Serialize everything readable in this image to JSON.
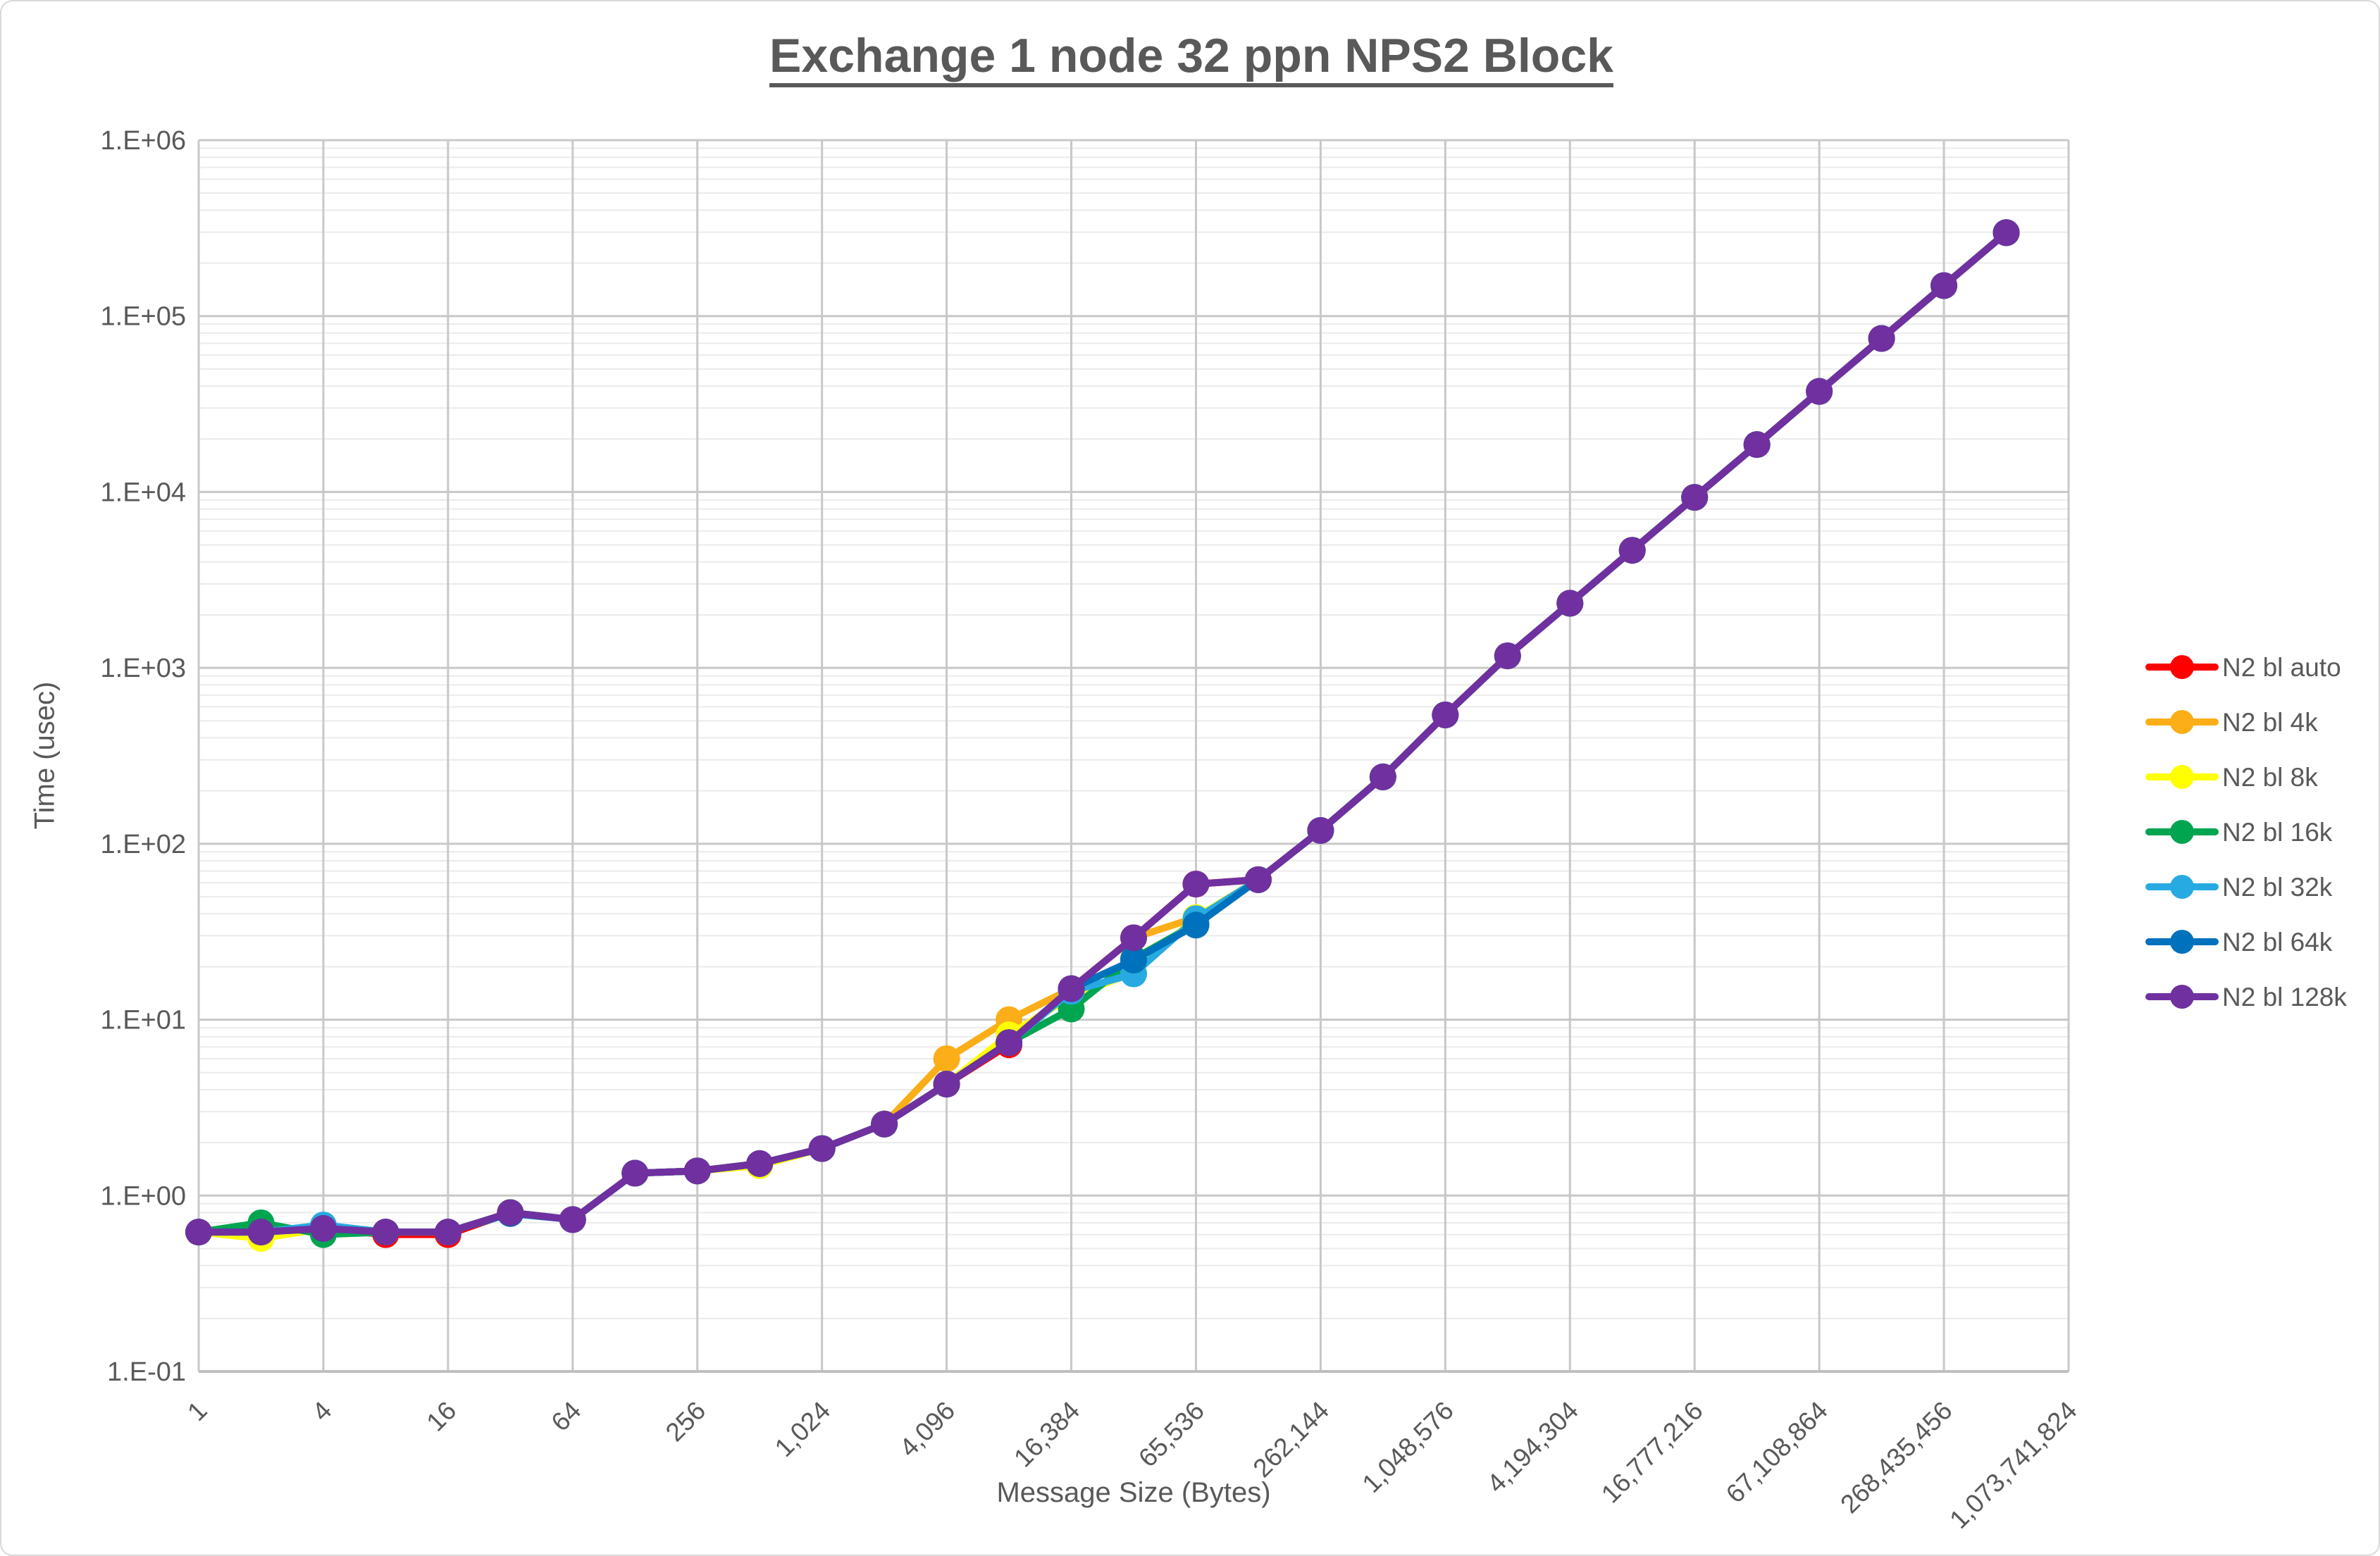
{
  "title": "Exchange 1 node 32 ppn NPS2 Block",
  "axes": {
    "x_label": "Message Size (Bytes)",
    "y_label": "Time (usec)",
    "x_tick_labels": [
      "1",
      "4",
      "16",
      "64",
      "256",
      "1,024",
      "4,096",
      "16,384",
      "65,536",
      "262,144",
      "1,048,576",
      "4,194,304",
      "16,777,216",
      "67,108,864",
      "268,435,456",
      "1,073,741,824"
    ],
    "y_tick_labels": [
      "1.E+06",
      "1.E+05",
      "1.E+04",
      "1.E+03",
      "1.E+02",
      "1.E+01",
      "1.E+00",
      "1.E-01"
    ]
  },
  "colors": {
    "text": "#595959",
    "grid_major": "#c8c8c8",
    "grid_minor": "#ebebeb",
    "plot_border": "#bfbfbf"
  },
  "chart_data": {
    "type": "line",
    "x_scale": "log",
    "y_scale": "log",
    "title": "Exchange 1 node 32 ppn NPS2 Block",
    "xlabel": "Message Size (Bytes)",
    "ylabel": "Time (usec)",
    "ylim": [
      0.1,
      1000000
    ],
    "xlim": [
      1,
      1073741824
    ],
    "grid": true,
    "legend_position": "right",
    "x": [
      1,
      2,
      4,
      8,
      16,
      32,
      64,
      128,
      256,
      512,
      1024,
      2048,
      4096,
      8192,
      16384,
      32768,
      65536,
      131072,
      262144,
      524288,
      1048576,
      2097152,
      4194304,
      8388608,
      16777216,
      33554432,
      67108864,
      134217728,
      268435456,
      536870912
    ],
    "series": [
      {
        "name": "N2 bl auto",
        "color": "#ff0000",
        "values": [
          0.62,
          0.62,
          0.65,
          0.6,
          0.6,
          0.8,
          0.73,
          1.34,
          1.38,
          1.52,
          1.85,
          2.55,
          4.3,
          7.2,
          15.0,
          29.2,
          59.0,
          62.5,
          119,
          240,
          540,
          1170,
          2330,
          4660,
          9320,
          18600,
          37300,
          74600,
          149000,
          298000
        ]
      },
      {
        "name": "N2 bl 4k",
        "color": "#fbae17",
        "values": [
          0.62,
          0.62,
          0.65,
          0.62,
          0.62,
          0.8,
          0.73,
          1.34,
          1.38,
          1.52,
          1.85,
          2.55,
          6.0,
          10.0,
          15.0,
          29.2,
          38.0,
          62.5,
          119,
          240,
          540,
          1170,
          2330,
          4660,
          9320,
          18600,
          37300,
          74600,
          149000,
          298000
        ]
      },
      {
        "name": "N2 bl 8k",
        "color": "#ffff00",
        "values": [
          0.62,
          0.57,
          0.65,
          0.62,
          0.62,
          0.8,
          0.73,
          1.34,
          1.38,
          1.48,
          1.85,
          2.55,
          4.3,
          8.2,
          13.6,
          18.5,
          38.0,
          62.5,
          119,
          240,
          540,
          1170,
          2330,
          4660,
          9320,
          18600,
          37300,
          74600,
          149000,
          298000
        ]
      },
      {
        "name": "N2 bl 16k",
        "color": "#00a550",
        "values": [
          0.62,
          0.7,
          0.6,
          0.62,
          0.62,
          0.8,
          0.73,
          1.34,
          1.38,
          1.52,
          1.85,
          2.55,
          4.3,
          7.4,
          11.5,
          22.2,
          35.0,
          62.5,
          119,
          240,
          540,
          1170,
          2330,
          4660,
          9320,
          18600,
          37300,
          74600,
          149000,
          298000
        ]
      },
      {
        "name": "N2 bl 32k",
        "color": "#27aae1",
        "values": [
          0.62,
          0.62,
          0.68,
          0.62,
          0.62,
          0.8,
          0.73,
          1.34,
          1.38,
          1.52,
          1.85,
          2.55,
          4.3,
          7.4,
          14.5,
          18.2,
          37.5,
          62.5,
          119,
          240,
          540,
          1170,
          2330,
          4660,
          9320,
          18600,
          37300,
          74600,
          149000,
          298000
        ]
      },
      {
        "name": "N2 bl 64k",
        "color": "#0071bc",
        "values": [
          0.62,
          0.62,
          0.65,
          0.62,
          0.62,
          0.79,
          0.73,
          1.34,
          1.38,
          1.52,
          1.85,
          2.55,
          4.3,
          7.4,
          15.0,
          21.8,
          34.5,
          62.5,
          119,
          240,
          540,
          1170,
          2330,
          4660,
          9320,
          18600,
          37300,
          74600,
          149000,
          298000
        ]
      },
      {
        "name": "N2 bl 128k",
        "color": "#7030a0",
        "values": [
          0.62,
          0.62,
          0.65,
          0.62,
          0.62,
          0.8,
          0.73,
          1.34,
          1.38,
          1.52,
          1.85,
          2.55,
          4.3,
          7.4,
          15.0,
          29.2,
          59.0,
          62.5,
          119,
          240,
          540,
          1170,
          2330,
          4660,
          9320,
          18600,
          37300,
          74600,
          149000,
          298000
        ]
      }
    ]
  },
  "legend": {
    "items": [
      "N2 bl auto",
      "N2 bl 4k",
      "N2 bl 8k",
      "N2 bl 16k",
      "N2 bl 32k",
      "N2 bl 64k",
      "N2 bl 128k"
    ]
  }
}
